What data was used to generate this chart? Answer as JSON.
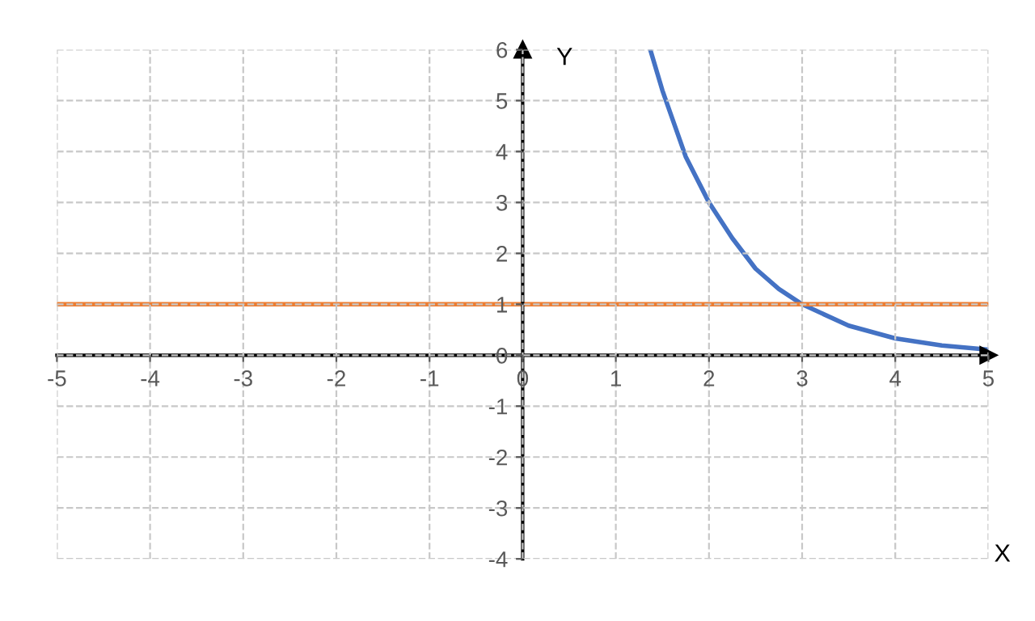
{
  "chart_data": {
    "type": "line",
    "xlabel": "X",
    "ylabel": "Y",
    "series": [
      {
        "color": "#4472c4",
        "x": [
          1.37,
          1.5,
          1.75,
          2,
          2.25,
          2.5,
          2.75,
          3,
          3.5,
          4,
          4.5,
          5
        ],
        "values": [
          6.0,
          5.2,
          3.9,
          3.0,
          2.3,
          1.7,
          1.3,
          1.0,
          0.58,
          0.33,
          0.19,
          0.11
        ]
      },
      {
        "color": "#ed7d31",
        "x": [
          -5,
          5
        ],
        "values": [
          1,
          1
        ]
      }
    ],
    "xlim": [
      -5,
      5
    ],
    "ylim": [
      -4,
      6
    ],
    "xticks": [
      -5,
      -4,
      -3,
      -2,
      -1,
      0,
      1,
      2,
      3,
      4,
      5
    ],
    "yticks": [
      -4,
      -3,
      -2,
      -1,
      0,
      1,
      2,
      3,
      4,
      5,
      6
    ],
    "grid": true,
    "line_style": "solid",
    "marker": "none"
  }
}
